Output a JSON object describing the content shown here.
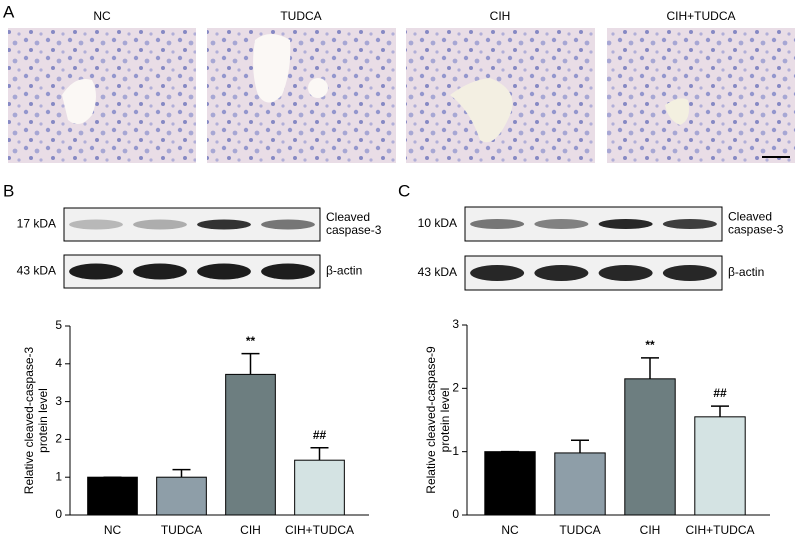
{
  "panel_a": {
    "label": "A",
    "images": [
      "NC",
      "TUDCA",
      "CIH",
      "CIH+TUDCA"
    ]
  },
  "panel_b": {
    "label": "B",
    "blots": [
      {
        "size": "17 kDA",
        "name": [
          "Cleaved",
          "caspase-3"
        ]
      },
      {
        "size": "43 kDA",
        "name": [
          "β-actin"
        ]
      }
    ]
  },
  "panel_c": {
    "label": "C",
    "blots": [
      {
        "size": "10 kDA",
        "name": [
          "Cleaved",
          "caspase-3"
        ]
      },
      {
        "size": "43 kDA",
        "name": [
          "β-actin"
        ]
      }
    ]
  },
  "chart_data": [
    {
      "type": "bar",
      "ylabel": [
        "Relative cleaved-caspase-3",
        "protein level"
      ],
      "categories": [
        "NC",
        "TUDCA",
        "CIH",
        "CIH+TUDCA"
      ],
      "values": [
        1,
        1,
        3.72,
        1.45
      ],
      "errors": [
        0,
        0.2,
        0.55,
        0.33
      ],
      "significance": [
        null,
        null,
        "**",
        "##"
      ],
      "colors": [
        "#000000",
        "#8e9ea8",
        "#6d7e80",
        "#d4e3e3"
      ],
      "ylim": [
        0,
        5
      ],
      "yticks": [
        0,
        1,
        2,
        3,
        4,
        5
      ]
    },
    {
      "type": "bar",
      "ylabel": [
        "Relative cleaved-caspase-9",
        "protein level"
      ],
      "categories": [
        "NC",
        "TUDCA",
        "CIH",
        "CIH+TUDCA"
      ],
      "values": [
        1,
        0.98,
        2.15,
        1.55
      ],
      "errors": [
        0,
        0.2,
        0.33,
        0.17
      ],
      "significance": [
        null,
        null,
        "**",
        "##"
      ],
      "colors": [
        "#000000",
        "#8e9ea8",
        "#6d7e80",
        "#d4e3e3"
      ],
      "ylim": [
        0,
        3
      ],
      "yticks": [
        0,
        1,
        2,
        3
      ]
    }
  ]
}
